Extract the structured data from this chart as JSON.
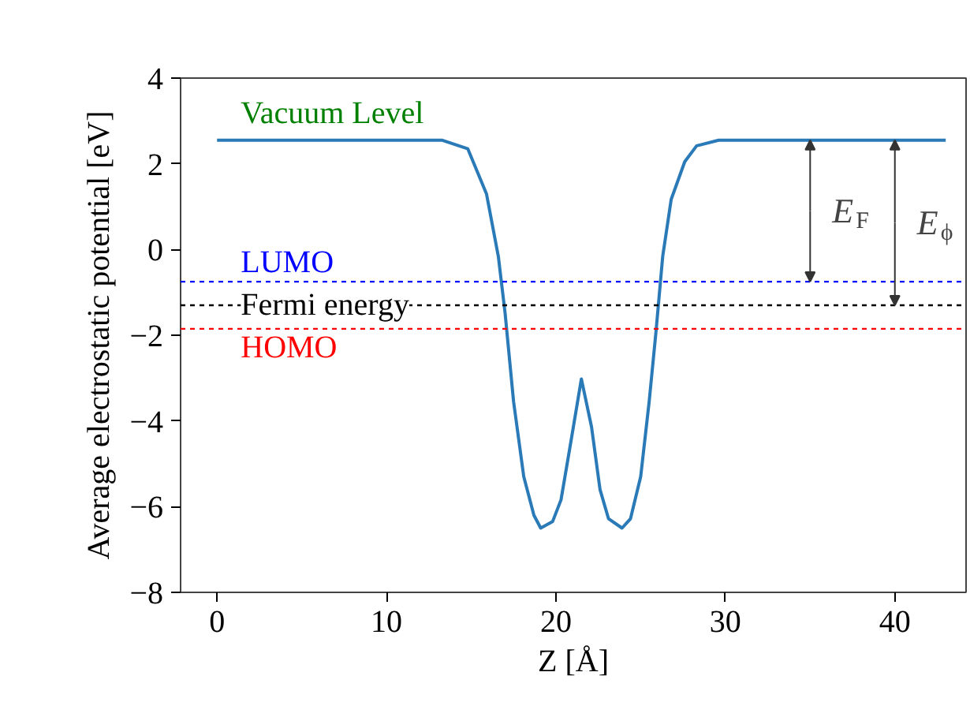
{
  "chart_data": {
    "type": "line",
    "xlabel": "Z [Å]",
    "ylabel": "Average electrostatic potential [eV]",
    "xlim": [
      -2.15,
      44.2
    ],
    "ylim": [
      -8,
      4
    ],
    "xticks": [
      0,
      10,
      20,
      30,
      40
    ],
    "yticks": [
      -8,
      -6,
      -4,
      -2,
      0,
      2,
      4
    ],
    "grid": false,
    "series": [
      {
        "color": "#2a7ab8",
        "x": [
          0,
          13.3,
          14.8,
          15.9,
          16.6,
          17.0,
          17.5,
          18.1,
          18.7,
          19.1,
          19.8,
          20.3,
          20.9,
          21.5,
          22.1,
          22.6,
          23.1,
          23.9,
          24.4,
          25.0,
          25.5,
          25.9,
          26.3,
          26.8,
          27.6,
          28.3,
          29.6,
          43.0
        ],
        "values": [
          2.55,
          2.55,
          2.35,
          1.3,
          -0.16,
          -1.49,
          -3.55,
          -5.3,
          -6.2,
          -6.5,
          -6.35,
          -5.84,
          -4.44,
          -3.02,
          -4.14,
          -5.6,
          -6.28,
          -6.5,
          -6.28,
          -5.3,
          -3.55,
          -1.93,
          -0.16,
          1.17,
          2.05,
          2.42,
          2.55,
          2.55
        ]
      }
    ],
    "ref_lines": [
      {
        "axis": "y",
        "value": -0.75,
        "label": "LUMO",
        "color": "#0000ff",
        "line_style": "dashed"
      },
      {
        "axis": "y",
        "value": -1.3,
        "label": "Fermi energy",
        "color": "#000000",
        "line_style": "dashed"
      },
      {
        "axis": "y",
        "value": -1.85,
        "label": "HOMO",
        "color": "#ff0000",
        "line_style": "dashed"
      }
    ],
    "annotations": [
      {
        "text": "Vacuum Level",
        "x": 1.4,
        "y": 2.55
      },
      {
        "text": "E$_{F}$",
        "x": 35,
        "y": -0.75
      },
      {
        "text": "E$_{ϕ}$",
        "x": 40,
        "y": -1.3
      }
    ]
  }
}
